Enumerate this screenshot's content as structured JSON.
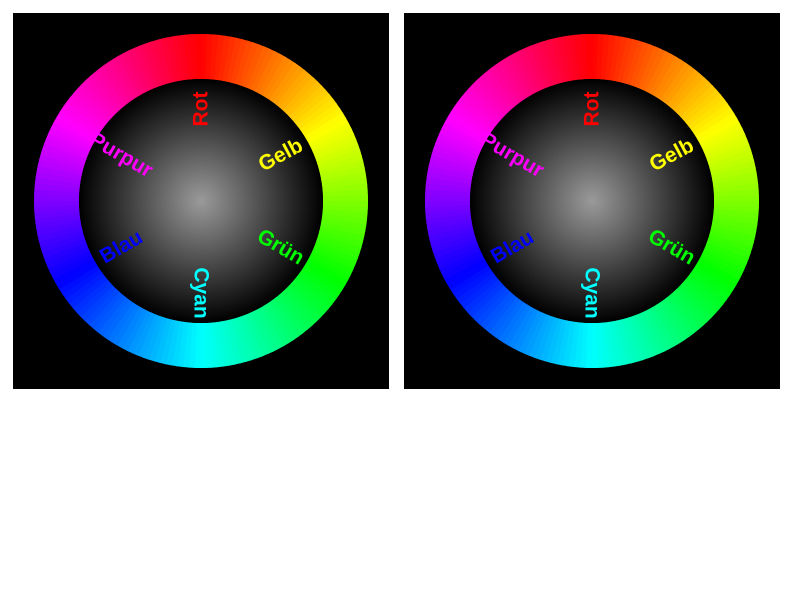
{
  "colors": {
    "background": "#000000",
    "page": "#ffffff",
    "center_glow": "#9a9a9a"
  },
  "wheels": [
    {
      "labels": [
        {
          "key": "rot",
          "text": "Rot",
          "color": "#ff0000"
        },
        {
          "key": "gelb",
          "text": "Gelb",
          "color": "#ffff00"
        },
        {
          "key": "gruen",
          "text": "Grün",
          "color": "#00ff00"
        },
        {
          "key": "cyan",
          "text": "Cyan",
          "color": "#00ffff"
        },
        {
          "key": "blau",
          "text": "Blau",
          "color": "#0000ff"
        },
        {
          "key": "purpur",
          "text": "Purpur",
          "color": "#ff00ff"
        }
      ]
    },
    {
      "labels": [
        {
          "key": "rot",
          "text": "Rot",
          "color": "#ff0000"
        },
        {
          "key": "gelb",
          "text": "Gelb",
          "color": "#ffff00"
        },
        {
          "key": "gruen",
          "text": "Grün",
          "color": "#00ff00"
        },
        {
          "key": "cyan",
          "text": "Cyan",
          "color": "#00ffff"
        },
        {
          "key": "blau",
          "text": "Blau",
          "color": "#0000ff"
        },
        {
          "key": "purpur",
          "text": "Purpur",
          "color": "#ff00ff"
        }
      ]
    }
  ]
}
